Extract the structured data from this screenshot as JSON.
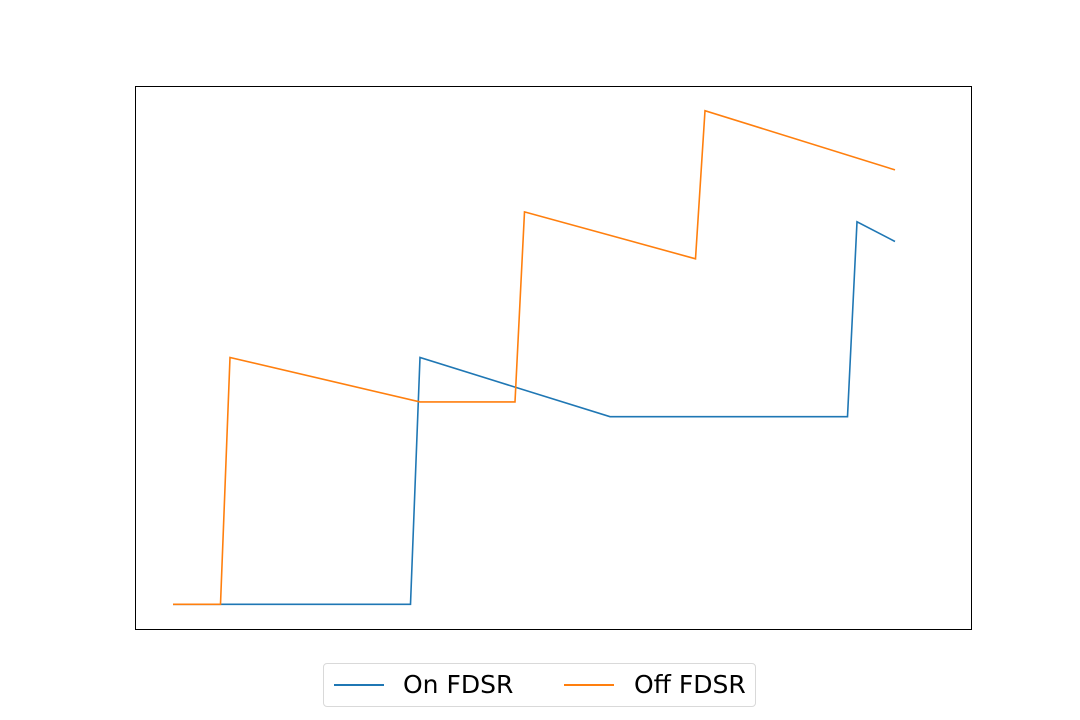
{
  "chart_data": {
    "type": "line",
    "title": "",
    "xlabel": "",
    "ylabel": "",
    "grid": false,
    "axes_visible": false,
    "legend_placement": "bottom-center",
    "xlim": [
      0,
      16
    ],
    "ylim": [
      -0.05,
      1.05
    ],
    "series": [
      {
        "name": "On FDSR",
        "color": "#1f77b4",
        "x": [
          0,
          2,
          4,
          5,
          5.2,
          9.2,
          10,
          14.2,
          14.4,
          15.2
        ],
        "y": [
          0,
          0,
          0,
          0,
          0.5,
          0.38,
          0.38,
          0.38,
          0.775,
          0.735
        ]
      },
      {
        "name": "Off FDSR",
        "color": "#ff7f0e",
        "x": [
          0,
          1,
          1.2,
          5.2,
          7.2,
          7.4,
          11,
          11.2,
          15.2
        ],
        "y": [
          0,
          0,
          0.5,
          0.41,
          0.41,
          0.795,
          0.7,
          1.0,
          0.88
        ]
      }
    ]
  }
}
